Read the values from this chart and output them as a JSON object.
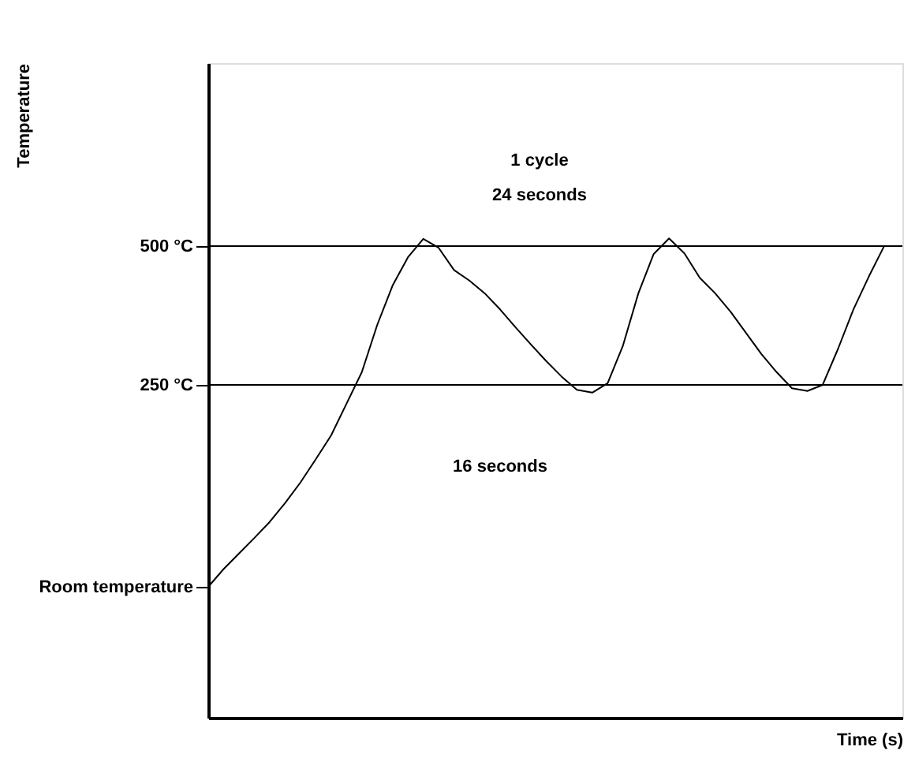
{
  "chart_data": {
    "type": "line",
    "xlabel": "Time (s)",
    "ylabel": "Temperature",
    "categories": [
      null,
      null,
      null,
      null,
      null,
      null,
      null,
      null,
      null,
      null,
      null,
      null,
      null,
      null,
      null,
      null,
      null,
      null,
      null,
      null,
      null,
      null,
      null,
      null,
      null,
      null,
      null,
      null,
      null,
      null,
      null,
      null,
      null,
      null,
      null,
      null,
      null,
      null,
      null,
      null,
      null,
      null,
      null,
      null,
      null
    ],
    "series": [
      {
        "color": "#000000",
        "values": [
          -114,
          -82,
          -54,
          -26,
          3,
          37,
          74,
          116,
          159,
          216,
          273,
          358,
          429,
          480,
          513,
          497,
          457,
          438,
          415,
          386,
          354,
          323,
          293,
          265,
          241,
          236,
          253,
          321,
          415,
          486,
          514,
          487,
          443,
          415,
          382,
          344,
          306,
          273,
          244,
          239,
          250,
          315,
          386,
          445,
          500
        ]
      }
    ],
    "ylim": [
      -350,
      830
    ],
    "yticks": [
      {
        "value": 500,
        "label": "500 °C"
      },
      {
        "value": 250,
        "label": "250 °C"
      },
      {
        "value": -114,
        "label": "Room temperature"
      }
    ],
    "tick_labels": "y",
    "grid": false,
    "marker": "none",
    "line_style": "solid",
    "ref_lines": [
      {
        "axis": "y",
        "value": 500,
        "color": "#000000"
      },
      {
        "axis": "y",
        "value": 250,
        "color": "#000000"
      }
    ],
    "annotations": [
      "1 cycle",
      "24 seconds",
      "16 seconds"
    ]
  }
}
